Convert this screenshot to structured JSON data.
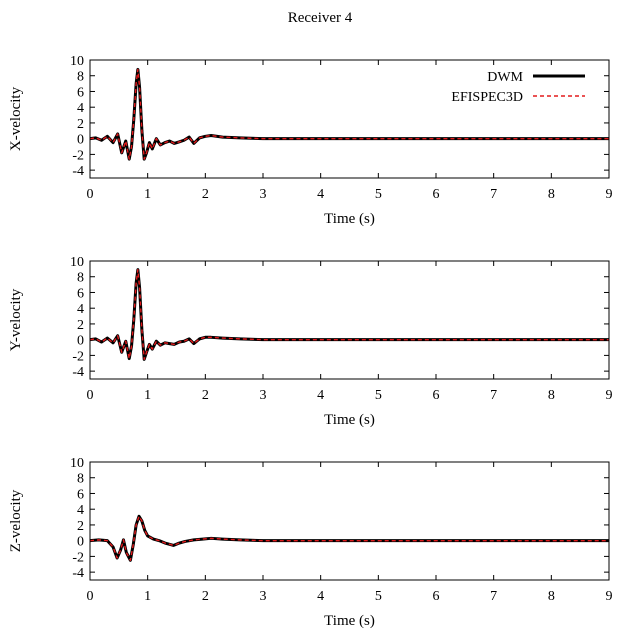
{
  "figure": {
    "title": "Receiver 4"
  },
  "colors": {
    "dwm": "#000000",
    "efispec": "#e41a1c",
    "axes": "#000000",
    "background": "#ffffff"
  },
  "legend": {
    "placement": "top-right",
    "entries": [
      {
        "label": "DWM",
        "style": "solid-thick-black"
      },
      {
        "label": "EFISPEC3D",
        "style": "dashed-red"
      }
    ]
  },
  "chart_data": [
    {
      "type": "line",
      "xlabel": "Time (s)",
      "ylabel": "X-velocity",
      "xlim": [
        0,
        9
      ],
      "ylim": [
        -5,
        10
      ],
      "xticks": [
        "0",
        "1",
        "2",
        "3",
        "4",
        "5",
        "6",
        "7",
        "8",
        "9"
      ],
      "yticks": [
        "-4",
        "-2",
        "0",
        "2",
        "4",
        "6",
        "8",
        "10"
      ],
      "grid": false,
      "legend_shown": true,
      "x": [
        0,
        0.1,
        0.2,
        0.3,
        0.4,
        0.48,
        0.55,
        0.62,
        0.68,
        0.72,
        0.76,
        0.8,
        0.83,
        0.86,
        0.9,
        0.94,
        0.98,
        1.03,
        1.08,
        1.15,
        1.22,
        1.3,
        1.38,
        1.46,
        1.55,
        1.63,
        1.72,
        1.8,
        1.9,
        2.0,
        2.1,
        2.3,
        2.6,
        3.0,
        4.0,
        5.0,
        6.0,
        7.0,
        8.0,
        9.0
      ],
      "series": [
        {
          "name": "DWM",
          "values": [
            0,
            0.1,
            -0.2,
            0.3,
            -0.5,
            0.6,
            -1.8,
            -0.3,
            -2.6,
            -1.0,
            2.5,
            7.0,
            8.8,
            6.5,
            1.0,
            -2.6,
            -1.8,
            -0.5,
            -1.3,
            0.0,
            -0.8,
            -0.5,
            -0.3,
            -0.6,
            -0.4,
            -0.2,
            0.2,
            -0.6,
            0.1,
            0.3,
            0.4,
            0.2,
            0.1,
            0.0,
            0.0,
            0.0,
            0.0,
            0.0,
            0.0,
            0.0
          ]
        },
        {
          "name": "EFISPEC3D",
          "values": [
            0,
            0.1,
            -0.2,
            0.3,
            -0.5,
            0.6,
            -1.8,
            -0.3,
            -2.6,
            -1.0,
            2.5,
            7.0,
            8.8,
            6.5,
            1.0,
            -2.6,
            -1.8,
            -0.5,
            -1.3,
            0.0,
            -0.8,
            -0.5,
            -0.3,
            -0.6,
            -0.4,
            -0.2,
            0.2,
            -0.6,
            0.1,
            0.3,
            0.4,
            0.2,
            0.1,
            0.0,
            0.0,
            0.0,
            0.0,
            0.0,
            0.0,
            0.0
          ]
        }
      ]
    },
    {
      "type": "line",
      "xlabel": "Time (s)",
      "ylabel": "Y-velocity",
      "xlim": [
        0,
        9
      ],
      "ylim": [
        -5,
        10
      ],
      "xticks": [
        "0",
        "1",
        "2",
        "3",
        "4",
        "5",
        "6",
        "7",
        "8",
        "9"
      ],
      "yticks": [
        "-4",
        "-2",
        "0",
        "2",
        "4",
        "6",
        "8",
        "10"
      ],
      "grid": false,
      "legend_shown": false,
      "x": [
        0,
        0.1,
        0.2,
        0.3,
        0.4,
        0.48,
        0.55,
        0.62,
        0.68,
        0.72,
        0.76,
        0.8,
        0.83,
        0.86,
        0.9,
        0.94,
        0.98,
        1.03,
        1.08,
        1.15,
        1.22,
        1.3,
        1.38,
        1.46,
        1.55,
        1.63,
        1.72,
        1.8,
        1.9,
        2.0,
        2.1,
        2.3,
        2.6,
        3.0,
        4.0,
        5.0,
        6.0,
        7.0,
        8.0,
        9.0
      ],
      "series": [
        {
          "name": "DWM",
          "values": [
            0,
            0.1,
            -0.3,
            0.2,
            -0.4,
            0.5,
            -1.6,
            -0.2,
            -2.4,
            -0.8,
            2.6,
            7.2,
            8.9,
            6.6,
            1.2,
            -2.5,
            -1.6,
            -0.6,
            -1.2,
            -0.2,
            -0.7,
            -0.4,
            -0.5,
            -0.6,
            -0.3,
            -0.2,
            0.1,
            -0.5,
            0.1,
            0.3,
            0.3,
            0.2,
            0.1,
            0.0,
            0.0,
            0.0,
            0.0,
            0.0,
            0.0,
            0.0
          ]
        },
        {
          "name": "EFISPEC3D",
          "values": [
            0,
            0.1,
            -0.3,
            0.2,
            -0.4,
            0.5,
            -1.6,
            -0.2,
            -2.4,
            -0.8,
            2.6,
            7.2,
            8.9,
            6.6,
            1.2,
            -2.5,
            -1.6,
            -0.6,
            -1.2,
            -0.2,
            -0.7,
            -0.4,
            -0.5,
            -0.6,
            -0.3,
            -0.2,
            0.1,
            -0.5,
            0.1,
            0.3,
            0.3,
            0.2,
            0.1,
            0.0,
            0.0,
            0.0,
            0.0,
            0.0,
            0.0,
            0.0
          ]
        }
      ]
    },
    {
      "type": "line",
      "xlabel": "Time (s)",
      "ylabel": "Z-velocity",
      "xlim": [
        0,
        9
      ],
      "ylim": [
        -5,
        10
      ],
      "xticks": [
        "0",
        "1",
        "2",
        "3",
        "4",
        "5",
        "6",
        "7",
        "8",
        "9"
      ],
      "yticks": [
        "-4",
        "-2",
        "0",
        "2",
        "4",
        "6",
        "8",
        "10"
      ],
      "grid": false,
      "legend_shown": false,
      "x": [
        0,
        0.15,
        0.3,
        0.4,
        0.47,
        0.53,
        0.58,
        0.63,
        0.7,
        0.75,
        0.8,
        0.85,
        0.9,
        0.95,
        1.0,
        1.1,
        1.2,
        1.3,
        1.45,
        1.55,
        1.65,
        1.8,
        1.95,
        2.1,
        2.3,
        2.6,
        3.0,
        4.0,
        5.0,
        6.0,
        7.0,
        8.0,
        9.0
      ],
      "series": [
        {
          "name": "DWM",
          "values": [
            0,
            0.1,
            0.0,
            -0.8,
            -2.2,
            -1.2,
            0.1,
            -1.5,
            -2.5,
            -0.5,
            2.0,
            3.1,
            2.5,
            1.3,
            0.6,
            0.2,
            0.0,
            -0.3,
            -0.6,
            -0.3,
            -0.1,
            0.1,
            0.2,
            0.3,
            0.2,
            0.1,
            0.0,
            0.0,
            0.0,
            0.0,
            0.0,
            0.0,
            0.0
          ]
        },
        {
          "name": "EFISPEC3D",
          "values": [
            0,
            0.1,
            0.0,
            -0.8,
            -2.2,
            -1.2,
            0.1,
            -1.5,
            -2.5,
            -0.5,
            2.0,
            3.1,
            2.5,
            1.3,
            0.6,
            0.2,
            0.0,
            -0.3,
            -0.6,
            -0.3,
            -0.1,
            0.1,
            0.2,
            0.3,
            0.2,
            0.1,
            0.0,
            0.0,
            0.0,
            0.0,
            0.0,
            0.0,
            0.0
          ]
        }
      ]
    }
  ]
}
